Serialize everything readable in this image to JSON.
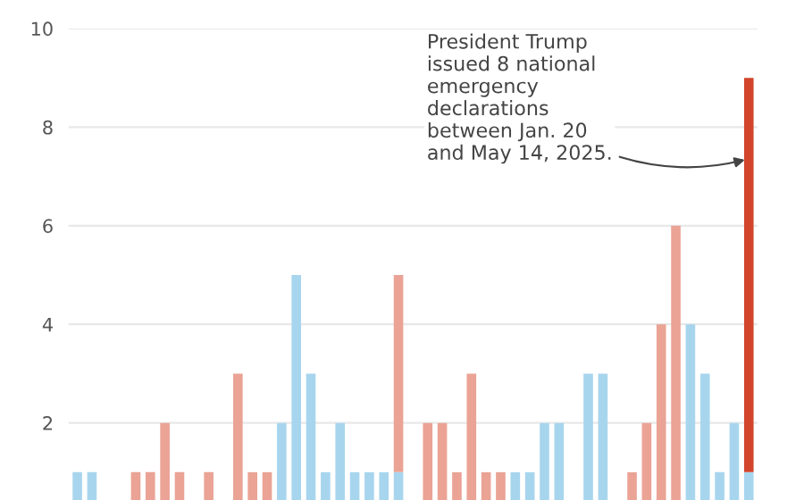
{
  "chart_data": {
    "type": "bar",
    "stacked": true,
    "categories": [
      null,
      null,
      null,
      null,
      null,
      null,
      null,
      null,
      null,
      null,
      null,
      null,
      null,
      null,
      null,
      null,
      null,
      null,
      null,
      null,
      null,
      null,
      null,
      null,
      null,
      null,
      null,
      null,
      null,
      null,
      null,
      null,
      null,
      null,
      null,
      null,
      null,
      null,
      null,
      null,
      null,
      null,
      null,
      null,
      null,
      null,
      null
    ],
    "series": [
      {
        "color": "#a8d5ee",
        "values": [
          1,
          1,
          null,
          null,
          null,
          null,
          null,
          null,
          null,
          null,
          null,
          null,
          null,
          null,
          2,
          5,
          3,
          1,
          2,
          1,
          1,
          1,
          1,
          null,
          null,
          null,
          null,
          null,
          null,
          null,
          1,
          1,
          2,
          2,
          null,
          3,
          3,
          null,
          null,
          null,
          null,
          null,
          4,
          3,
          1,
          2,
          1
        ]
      },
      {
        "color": "#eaa395",
        "colors": [
          "#eaa395",
          "#eaa395",
          "#eaa395",
          "#eaa395",
          "#eaa395",
          "#eaa395",
          "#eaa395",
          "#eaa395",
          "#eaa395",
          "#eaa395",
          "#eaa395",
          "#eaa395",
          "#eaa395",
          "#eaa395",
          "#eaa395",
          "#eaa395",
          "#eaa395",
          "#eaa395",
          "#eaa395",
          "#eaa395",
          "#eaa395",
          "#eaa395",
          "#eaa395",
          "#eaa395",
          "#eaa395",
          "#eaa395",
          "#eaa395",
          "#eaa395",
          "#eaa395",
          "#eaa395",
          "#eaa395",
          "#eaa395",
          "#eaa395",
          "#eaa395",
          "#eaa395",
          "#eaa395",
          "#eaa395",
          "#eaa395",
          "#eaa395",
          "#eaa395",
          "#eaa395",
          "#eaa395",
          "#eaa395",
          "#eaa395",
          "#eaa395",
          "#eaa395",
          "#d2452c"
        ],
        "values": [
          null,
          null,
          null,
          null,
          1,
          1,
          2,
          1,
          null,
          1,
          null,
          3,
          1,
          1,
          null,
          null,
          null,
          null,
          null,
          null,
          null,
          null,
          4,
          null,
          2,
          2,
          1,
          3,
          1,
          1,
          null,
          null,
          null,
          null,
          null,
          null,
          null,
          null,
          1,
          2,
          4,
          6,
          null,
          null,
          null,
          null,
          8
        ]
      }
    ],
    "ylim": [
      0,
      10
    ],
    "yticks": [
      2,
      4,
      6,
      8,
      10
    ],
    "grid": "y",
    "annotations": [
      "President Trump\nissued 8 national\nemergency\ndeclarations\nbetween Jan. 20\nand May 14, 2025."
    ]
  }
}
